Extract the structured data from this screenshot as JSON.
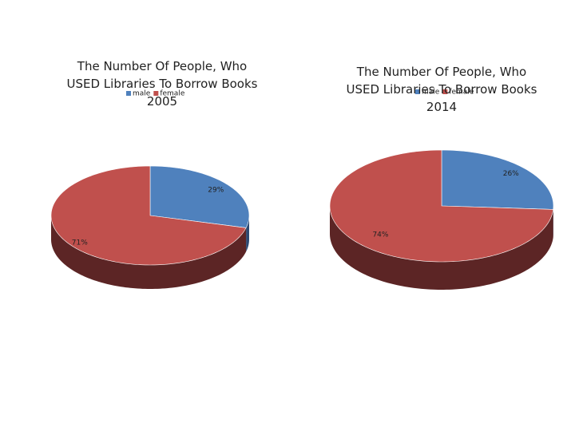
{
  "chart_data": [
    {
      "type": "pie",
      "title": "The Number Of People, Who USED Libraries To Borrow Books 2005",
      "categories": [
        "male",
        "female"
      ],
      "values": [
        29,
        71
      ],
      "value_labels": [
        "29%",
        "71%"
      ],
      "colors": [
        "#4f81bd",
        "#c0504d"
      ],
      "side_colors": [
        "#2c4a73",
        "#5c2525"
      ]
    },
    {
      "type": "pie",
      "title": "The Number Of People, Who USED Libraries To Borrow Books 2014",
      "categories": [
        "male",
        "female"
      ],
      "values": [
        26,
        74
      ],
      "value_labels": [
        "26%",
        "74%"
      ],
      "colors": [
        "#4f81bd",
        "#c0504d"
      ],
      "side_colors": [
        "#2c4a73",
        "#5c2525"
      ]
    }
  ]
}
